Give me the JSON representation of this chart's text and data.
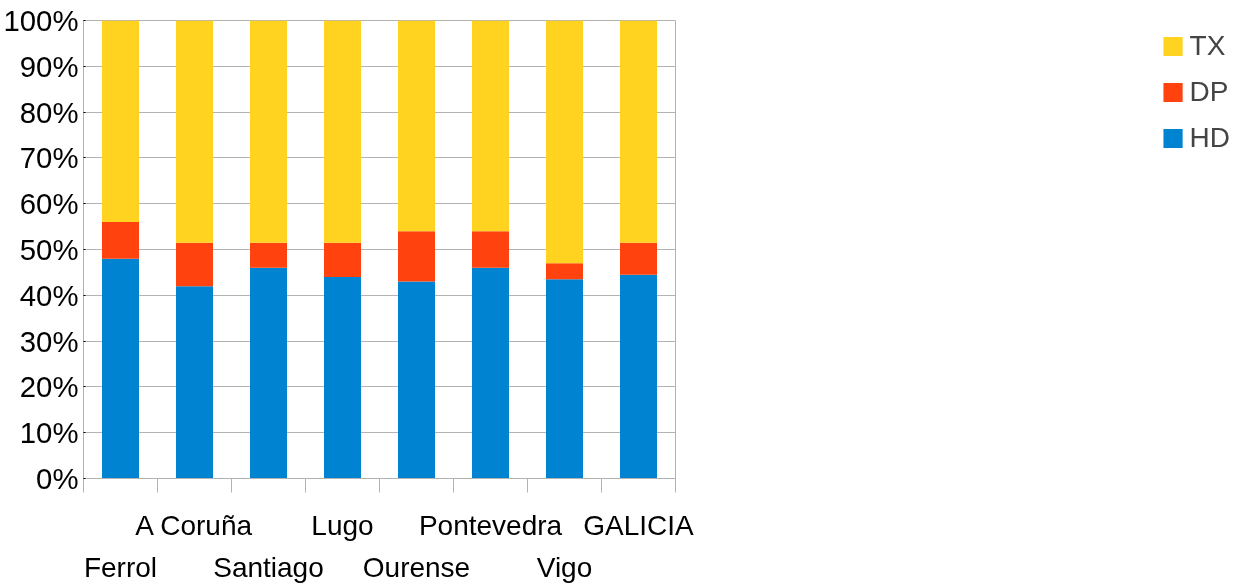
{
  "chart_data": {
    "type": "bar",
    "stacked": true,
    "categories": [
      "Ferrol",
      "A Coruña",
      "Santiago",
      "Lugo",
      "Ourense",
      "Pontevedra",
      "Vigo",
      "GALICIA"
    ],
    "series": [
      {
        "name": "HD",
        "color": "#0084d1",
        "values": [
          48,
          42,
          46,
          44,
          43,
          46,
          43.5,
          44.5
        ]
      },
      {
        "name": "DP",
        "color": "#ff420e",
        "values": [
          8,
          9.5,
          5.5,
          7.5,
          11,
          8,
          3.5,
          7
        ]
      },
      {
        "name": "TX",
        "color": "#ffd320",
        "values": [
          44,
          48.5,
          48.5,
          48.5,
          46,
          46,
          53,
          48.5
        ]
      }
    ],
    "ylim": [
      0,
      100
    ],
    "yticks": [
      {
        "value": 0,
        "label": "0%"
      },
      {
        "value": 10,
        "label": "10%"
      },
      {
        "value": 20,
        "label": "20%"
      },
      {
        "value": 30,
        "label": "30%"
      },
      {
        "value": 40,
        "label": "40%"
      },
      {
        "value": 50,
        "label": "50%"
      },
      {
        "value": 60,
        "label": "60%"
      },
      {
        "value": 70,
        "label": "70%"
      },
      {
        "value": 80,
        "label": "80%"
      },
      {
        "value": 90,
        "label": "90%"
      },
      {
        "value": 100,
        "label": "100%"
      }
    ],
    "grid": "y",
    "legend": "right"
  }
}
